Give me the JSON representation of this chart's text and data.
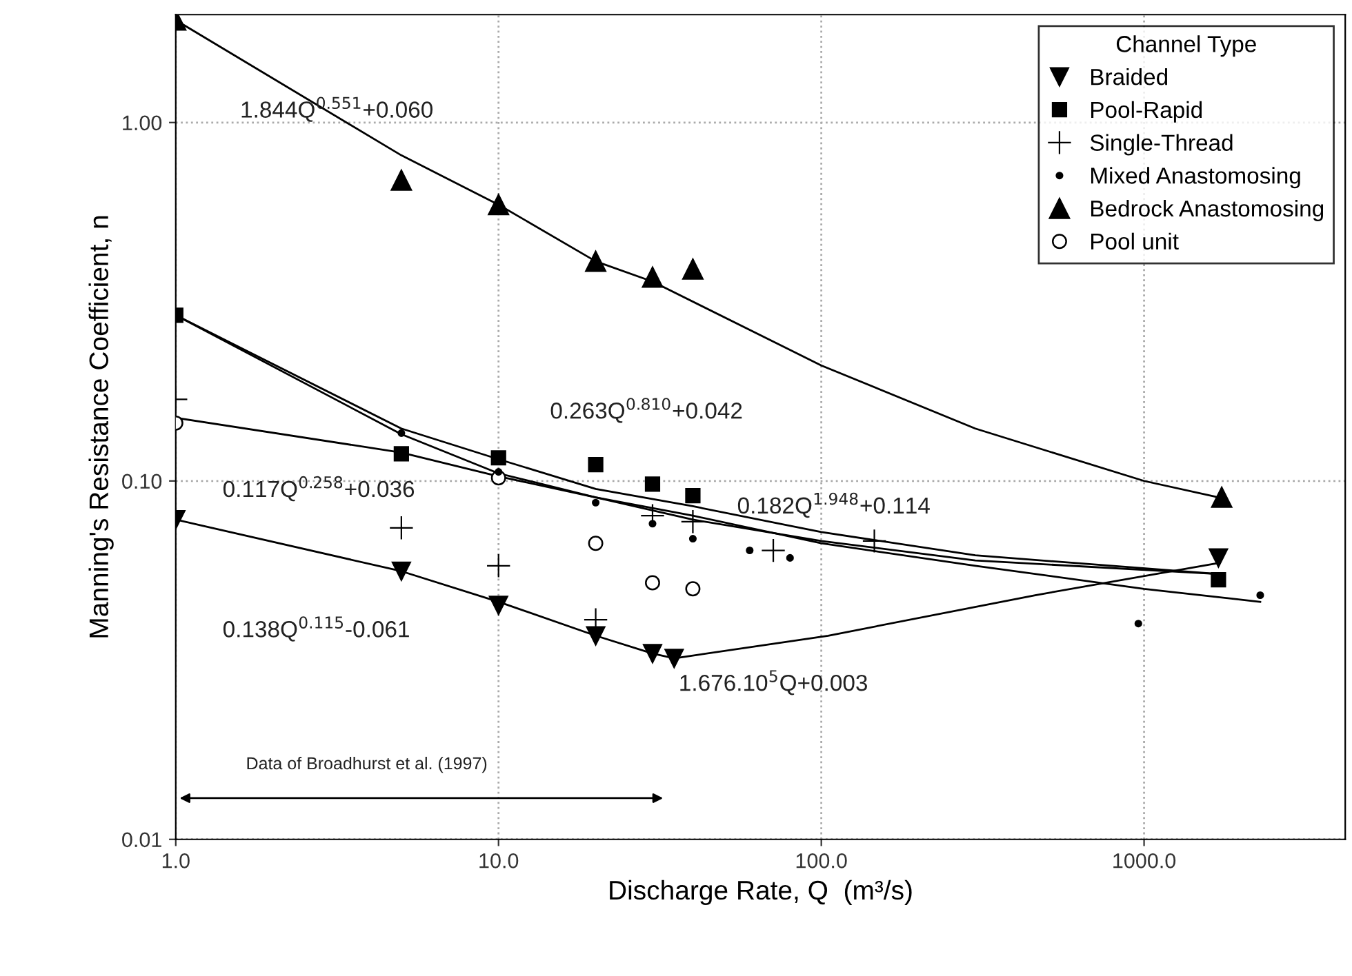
{
  "chart_data": {
    "type": "scatter",
    "xlabel": "Discharge Rate, Q  (m³/s)",
    "ylabel": "Manning's Resistance Coefficient, n",
    "log": "xy",
    "xlim": [
      1,
      4200
    ],
    "ylim": [
      0.01,
      2.0
    ],
    "xticks": [
      {
        "value": 1,
        "label": "1.0"
      },
      {
        "value": 10,
        "label": "10.0"
      },
      {
        "value": 100,
        "label": "100.0"
      },
      {
        "value": 1000,
        "label": "1000.0"
      }
    ],
    "yticks": [
      {
        "value": 0.01,
        "label": "0.01"
      },
      {
        "value": 0.1,
        "label": "0.10"
      },
      {
        "value": 1,
        "label": "1.00"
      }
    ],
    "grid": true,
    "legend": "top right",
    "legend_title": "Channel Type",
    "series": [
      {
        "name": "Braided",
        "color": "#000000",
        "marker": "triangle_down",
        "x": [
          1,
          5,
          10,
          20,
          30,
          35,
          1700
        ],
        "values": [
          0.078,
          0.056,
          0.045,
          0.037,
          0.033,
          0.032,
          0.061
        ]
      },
      {
        "name": "Pool-Rapid",
        "color": "#000000",
        "marker": "square",
        "x": [
          1,
          5,
          10,
          20,
          30,
          40,
          1700
        ],
        "values": [
          0.29,
          0.119,
          0.116,
          0.111,
          0.098,
          0.091,
          0.053
        ]
      },
      {
        "name": "Single-Thread",
        "color": "#000000",
        "marker": "plus",
        "x": [
          1,
          5,
          10,
          20,
          30,
          40,
          71,
          146
        ],
        "values": [
          0.169,
          0.074,
          0.058,
          0.041,
          0.08,
          0.077,
          0.064,
          0.068
        ]
      },
      {
        "name": "Mixed Anastomosing",
        "color": "#000000",
        "marker": "point",
        "x": [
          5,
          10,
          20,
          30,
          40,
          60,
          80,
          960,
          2290
        ],
        "values": [
          0.136,
          0.106,
          0.087,
          0.076,
          0.069,
          0.064,
          0.061,
          0.04,
          0.048
        ]
      },
      {
        "name": "Bedrock Anastomosing",
        "color": "#000000",
        "marker": "triangle",
        "x": [
          1,
          5,
          10,
          20,
          30,
          40,
          1740
        ],
        "values": [
          1.93,
          0.69,
          0.59,
          0.41,
          0.37,
          0.39,
          0.09
        ]
      },
      {
        "name": "Pool unit",
        "color": "#000000",
        "marker": "circle_open",
        "x": [
          1,
          10,
          20,
          30,
          40
        ],
        "values": [
          0.145,
          0.102,
          0.067,
          0.052,
          0.05
        ]
      },
      {
        "type": "line",
        "color": "#000000",
        "x": [
          1,
          5,
          10,
          20,
          30,
          100,
          300,
          1000,
          1700
        ],
        "values": [
          1.93,
          0.81,
          0.59,
          0.41,
          0.36,
          0.21,
          0.14,
          0.1,
          0.09
        ]
      },
      {
        "type": "line",
        "color": "#000000",
        "x": [
          1,
          5,
          10,
          20,
          40,
          100,
          300,
          1700
        ],
        "values": [
          0.29,
          0.14,
          0.115,
          0.095,
          0.085,
          0.072,
          0.062,
          0.055
        ]
      },
      {
        "type": "line",
        "color": "#000000",
        "x": [
          1,
          5,
          10,
          20,
          40,
          100,
          300,
          1000,
          2290
        ],
        "values": [
          0.29,
          0.135,
          0.105,
          0.09,
          0.08,
          0.067,
          0.058,
          0.05,
          0.046
        ]
      },
      {
        "type": "line",
        "color": "#000000",
        "x": [
          1,
          5,
          10,
          20,
          40,
          100,
          300,
          1700
        ],
        "values": [
          0.15,
          0.12,
          0.103,
          0.09,
          0.078,
          0.068,
          0.06,
          0.055
        ]
      },
      {
        "type": "line",
        "color": "#000000",
        "x": [
          1,
          5,
          10,
          20,
          30,
          35
        ],
        "values": [
          0.078,
          0.056,
          0.046,
          0.037,
          0.033,
          0.032
        ]
      },
      {
        "type": "line",
        "color": "#000000",
        "x": [
          35,
          105,
          460,
          1700
        ],
        "values": [
          0.032,
          0.037,
          0.048,
          0.059
        ]
      }
    ],
    "annotations": [
      "1.844Q$^{0.551}$+0.060",
      "0.263Q$^{0.810}$+0.042",
      "0.117Q$^{0.258}$+0.036",
      "0.182Q$^{1.948}$+0.114",
      "0.138Q$^{0.115}$-0.061",
      "1.676.10$^{5}$Q+0.003",
      "Data of Broadhurst et al. (1997)"
    ]
  }
}
